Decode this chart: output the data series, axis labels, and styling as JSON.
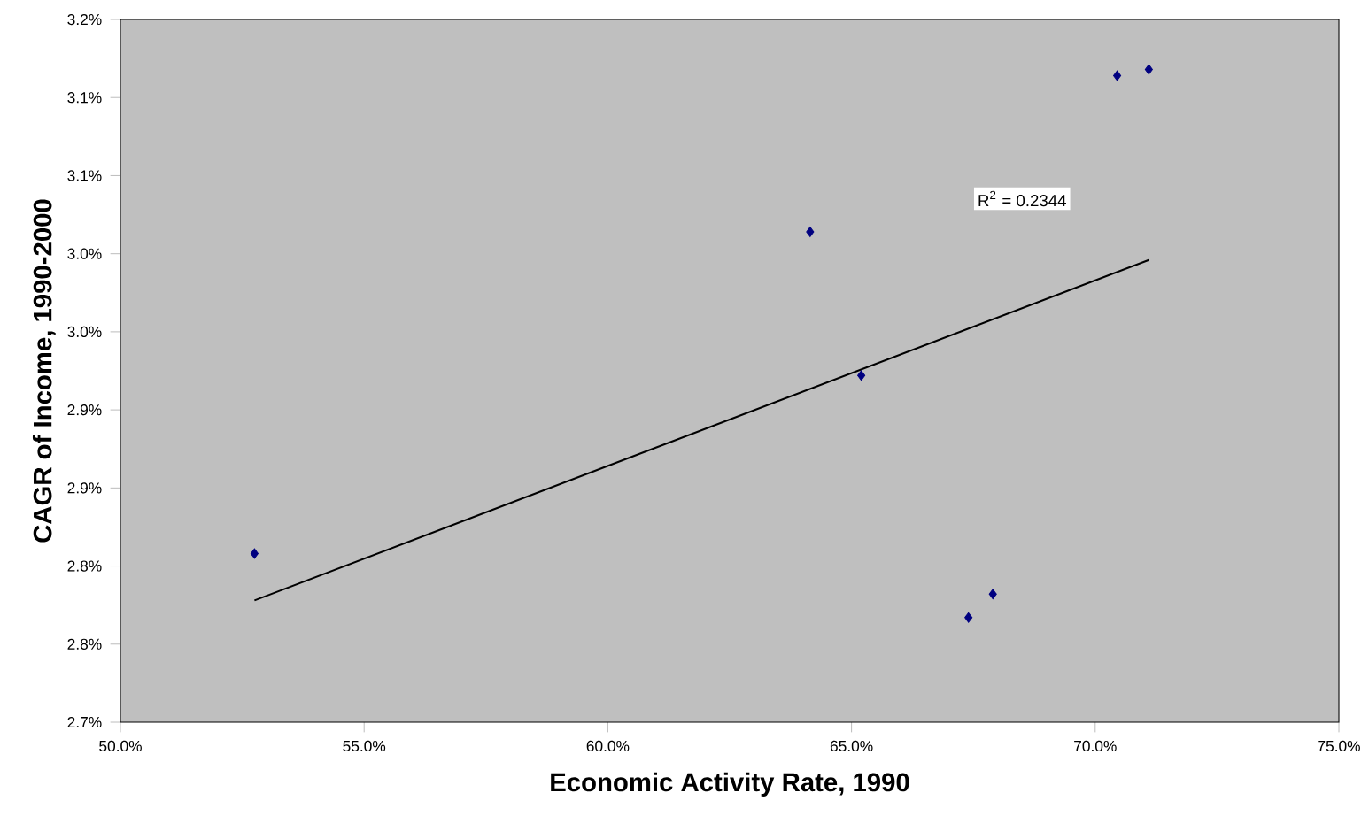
{
  "chart_data": {
    "type": "scatter",
    "xlabel": "Economic Activity Rate, 1990",
    "ylabel": "CAGR of Income, 1990-2000",
    "xlim": [
      50,
      75
    ],
    "xticks": [
      {
        "value": 50,
        "label": "50.0%"
      },
      {
        "value": 55,
        "label": "55.0%"
      },
      {
        "value": 60,
        "label": "60.0%"
      },
      {
        "value": 65,
        "label": "65.0%"
      },
      {
        "value": 70,
        "label": "70.0%"
      },
      {
        "value": 75,
        "label": "75.0%"
      }
    ],
    "ylim": [
      2.7,
      3.15
    ],
    "yticks": [
      {
        "value": 2.7,
        "label": "2.7%"
      },
      {
        "value": 2.75,
        "label": "2.8%"
      },
      {
        "value": 2.8,
        "label": "2.8%"
      },
      {
        "value": 2.85,
        "label": "2.9%"
      },
      {
        "value": 2.9,
        "label": "2.9%"
      },
      {
        "value": 2.95,
        "label": "3.0%"
      },
      {
        "value": 3.0,
        "label": "3.0%"
      },
      {
        "value": 3.05,
        "label": "3.1%"
      },
      {
        "value": 3.1,
        "label": "3.1%"
      },
      {
        "value": 3.15,
        "label": "3.2%"
      }
    ],
    "marker": "diamond",
    "series": [
      {
        "color": "#000080",
        "x": [
          52.75,
          64.15,
          65.2,
          67.4,
          67.9,
          70.45,
          71.1
        ],
        "values": [
          2.808,
          3.014,
          2.922,
          2.767,
          2.782,
          3.114,
          3.118
        ]
      },
      {
        "type": "line",
        "marker": "none",
        "color": "#000000",
        "x": [
          52.75,
          71.1
        ],
        "values": [
          2.778,
          2.996
        ]
      }
    ],
    "annotations": [
      "R$^{2}$ = 0.2344"
    ]
  }
}
